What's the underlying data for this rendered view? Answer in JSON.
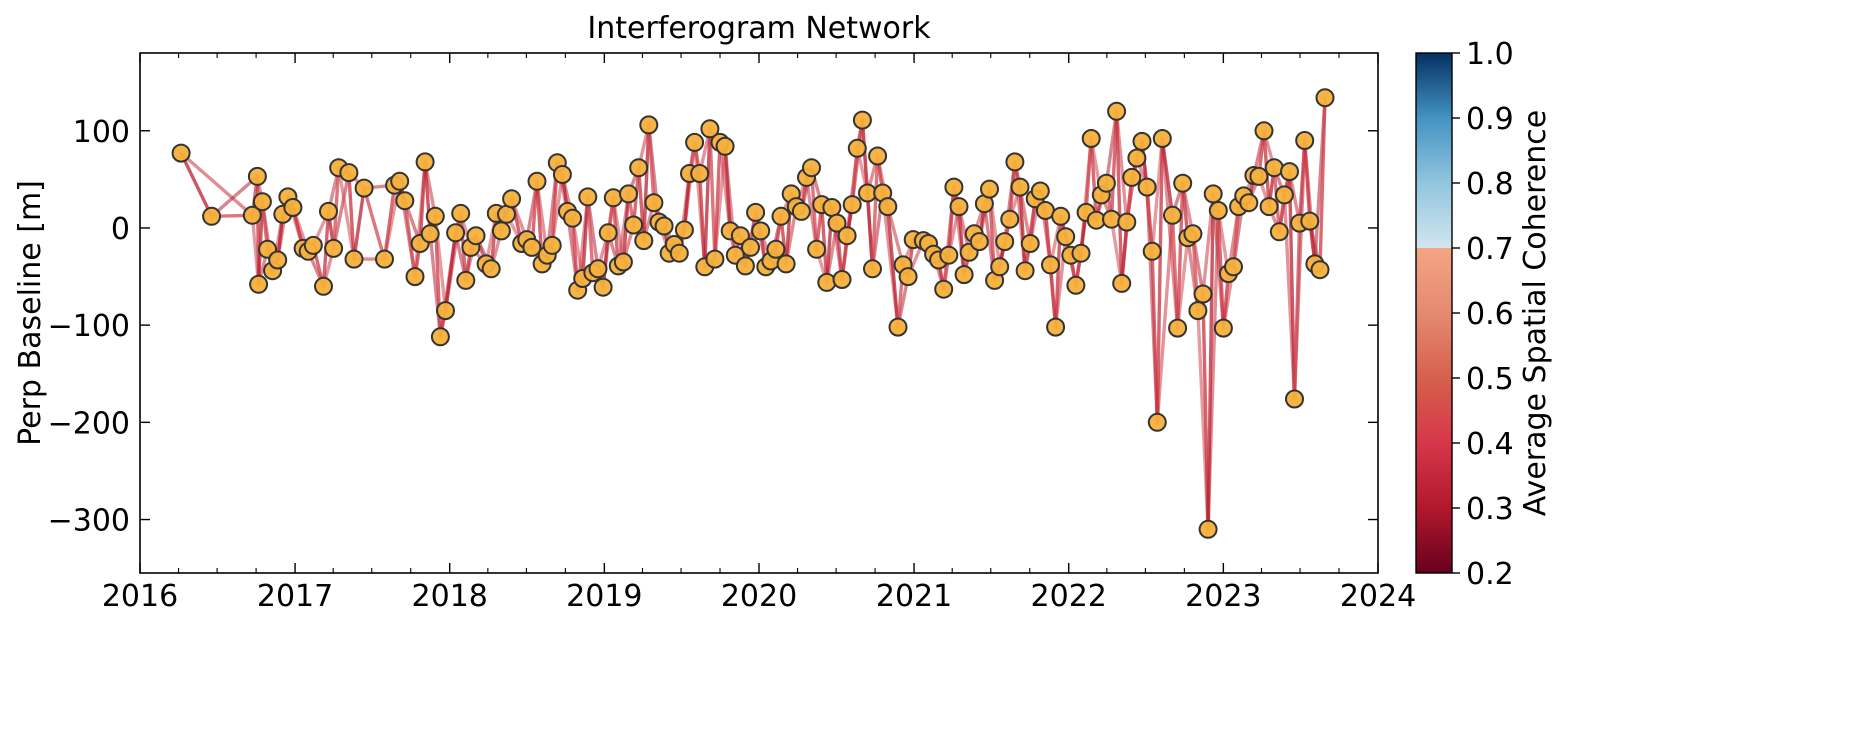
{
  "chart_data": {
    "type": "scatter",
    "title": "Interferogram Network",
    "xlabel": "",
    "ylabel": "Perp Baseline [m]",
    "x_ticks": [
      "2016",
      "2017",
      "2018",
      "2019",
      "2020",
      "2021",
      "2022",
      "2023",
      "2024"
    ],
    "y_ticks": [
      "100",
      "0",
      "−100",
      "−200",
      "−300"
    ],
    "xlim": [
      "2016-01-01",
      "2024-01-01"
    ],
    "ylim": [
      -355,
      180
    ],
    "grid": false,
    "colorbar": {
      "label": "Average Spatial Coherence",
      "range": [
        0.2,
        1.0
      ],
      "ticks": [
        "0.2",
        "0.3",
        "0.4",
        "0.5",
        "0.6",
        "0.7",
        "0.8",
        "0.9",
        "1.0"
      ],
      "colormap": "RdBu"
    },
    "marker_color": "#f6b03b",
    "marker_edge_color": "#333333",
    "edge_color": "#c6303c",
    "acquisitions": [
      [
        "2016-04-07",
        77
      ],
      [
        "2016-06-18",
        12
      ],
      [
        "2016-09-22",
        13
      ],
      [
        "2016-10-04",
        53
      ],
      [
        "2016-10-07",
        -58
      ],
      [
        "2016-10-16",
        27
      ],
      [
        "2016-10-28",
        -22
      ],
      [
        "2016-11-09",
        -44
      ],
      [
        "2016-11-21",
        -33
      ],
      [
        "2016-12-03",
        14
      ],
      [
        "2016-12-15",
        32
      ],
      [
        "2016-12-27",
        21
      ],
      [
        "2017-01-20",
        -21
      ],
      [
        "2017-02-01",
        -24
      ],
      [
        "2017-02-13",
        -18
      ],
      [
        "2017-03-09",
        -60
      ],
      [
        "2017-03-21",
        17
      ],
      [
        "2017-04-02",
        -21
      ],
      [
        "2017-04-14",
        62
      ],
      [
        "2017-05-08",
        57
      ],
      [
        "2017-05-20",
        -32
      ],
      [
        "2017-06-13",
        41
      ],
      [
        "2017-07-31",
        -32
      ],
      [
        "2017-08-24",
        44
      ],
      [
        "2017-09-05",
        48
      ],
      [
        "2017-09-17",
        28
      ],
      [
        "2017-10-11",
        -50
      ],
      [
        "2017-10-23",
        -16
      ],
      [
        "2017-11-04",
        68
      ],
      [
        "2017-11-16",
        -6
      ],
      [
        "2017-11-28",
        12
      ],
      [
        "2017-12-10",
        -112
      ],
      [
        "2017-12-22",
        -85
      ],
      [
        "2018-01-15",
        -5
      ],
      [
        "2018-01-27",
        15
      ],
      [
        "2018-02-08",
        -54
      ],
      [
        "2018-02-20",
        -20
      ],
      [
        "2018-03-04",
        -8
      ],
      [
        "2018-03-28",
        -37
      ],
      [
        "2018-04-09",
        -42
      ],
      [
        "2018-04-21",
        15
      ],
      [
        "2018-05-03",
        -3
      ],
      [
        "2018-05-15",
        14
      ],
      [
        "2018-05-27",
        30
      ],
      [
        "2018-06-20",
        -16
      ],
      [
        "2018-07-02",
        -12
      ],
      [
        "2018-07-14",
        -20
      ],
      [
        "2018-07-26",
        48
      ],
      [
        "2018-08-07",
        -37
      ],
      [
        "2018-08-19",
        -28
      ],
      [
        "2018-08-31",
        -18
      ],
      [
        "2018-09-12",
        67
      ],
      [
        "2018-09-24",
        55
      ],
      [
        "2018-10-06",
        17
      ],
      [
        "2018-10-18",
        10
      ],
      [
        "2018-10-30",
        -64
      ],
      [
        "2018-11-11",
        -52
      ],
      [
        "2018-11-23",
        32
      ],
      [
        "2018-12-05",
        -46
      ],
      [
        "2018-12-17",
        -42
      ],
      [
        "2018-12-29",
        -61
      ],
      [
        "2019-01-10",
        -5
      ],
      [
        "2019-01-22",
        31
      ],
      [
        "2019-02-03",
        -39
      ],
      [
        "2019-02-15",
        -35
      ],
      [
        "2019-02-27",
        35
      ],
      [
        "2019-03-11",
        3
      ],
      [
        "2019-03-23",
        62
      ],
      [
        "2019-04-04",
        -13
      ],
      [
        "2019-04-16",
        106
      ],
      [
        "2019-04-28",
        26
      ],
      [
        "2019-05-10",
        6
      ],
      [
        "2019-05-22",
        2
      ],
      [
        "2019-06-03",
        -26
      ],
      [
        "2019-06-15",
        -17
      ],
      [
        "2019-06-27",
        -26
      ],
      [
        "2019-07-09",
        -2
      ],
      [
        "2019-07-21",
        56
      ],
      [
        "2019-08-02",
        88
      ],
      [
        "2019-08-14",
        56
      ],
      [
        "2019-08-26",
        -40
      ],
      [
        "2019-09-07",
        102
      ],
      [
        "2019-09-19",
        -32
      ],
      [
        "2019-10-01",
        88
      ],
      [
        "2019-10-13",
        84
      ],
      [
        "2019-10-25",
        -3
      ],
      [
        "2019-11-06",
        -28
      ],
      [
        "2019-11-18",
        -8
      ],
      [
        "2019-11-30",
        -39
      ],
      [
        "2019-12-12",
        -20
      ],
      [
        "2019-12-24",
        16
      ],
      [
        "2020-01-05",
        -3
      ],
      [
        "2020-01-17",
        -40
      ],
      [
        "2020-01-29",
        -34
      ],
      [
        "2020-02-10",
        -22
      ],
      [
        "2020-02-22",
        12
      ],
      [
        "2020-03-05",
        -37
      ],
      [
        "2020-03-17",
        35
      ],
      [
        "2020-03-29",
        22
      ],
      [
        "2020-04-10",
        17
      ],
      [
        "2020-04-22",
        52
      ],
      [
        "2020-05-04",
        62
      ],
      [
        "2020-05-16",
        -22
      ],
      [
        "2020-05-28",
        24
      ],
      [
        "2020-06-09",
        -56
      ],
      [
        "2020-06-21",
        21
      ],
      [
        "2020-07-03",
        5
      ],
      [
        "2020-07-15",
        -53
      ],
      [
        "2020-07-27",
        -8
      ],
      [
        "2020-08-08",
        24
      ],
      [
        "2020-08-20",
        82
      ],
      [
        "2020-09-01",
        111
      ],
      [
        "2020-09-13",
        36
      ],
      [
        "2020-09-25",
        -42
      ],
      [
        "2020-10-07",
        74
      ],
      [
        "2020-10-19",
        36
      ],
      [
        "2020-10-31",
        22
      ],
      [
        "2020-11-24",
        -102
      ],
      [
        "2020-12-06",
        -38
      ],
      [
        "2020-12-18",
        -50
      ],
      [
        "2020-12-30",
        -12
      ],
      [
        "2021-01-23",
        -13
      ],
      [
        "2021-02-04",
        -16
      ],
      [
        "2021-02-16",
        -27
      ],
      [
        "2021-02-28",
        -33
      ],
      [
        "2021-03-12",
        -63
      ],
      [
        "2021-03-24",
        -28
      ],
      [
        "2021-04-05",
        42
      ],
      [
        "2021-04-17",
        22
      ],
      [
        "2021-04-29",
        -48
      ],
      [
        "2021-05-11",
        -25
      ],
      [
        "2021-05-23",
        -6
      ],
      [
        "2021-06-04",
        -14
      ],
      [
        "2021-06-16",
        25
      ],
      [
        "2021-06-28",
        40
      ],
      [
        "2021-07-10",
        -54
      ],
      [
        "2021-07-22",
        -40
      ],
      [
        "2021-08-03",
        -14
      ],
      [
        "2021-08-15",
        9
      ],
      [
        "2021-08-27",
        68
      ],
      [
        "2021-09-08",
        42
      ],
      [
        "2021-09-20",
        -44
      ],
      [
        "2021-10-02",
        -16
      ],
      [
        "2021-10-14",
        30
      ],
      [
        "2021-10-26",
        38
      ],
      [
        "2021-11-07",
        18
      ],
      [
        "2021-11-19",
        -38
      ],
      [
        "2021-12-01",
        -102
      ],
      [
        "2021-12-13",
        12
      ],
      [
        "2021-12-25",
        -9
      ],
      [
        "2022-01-06",
        -28
      ],
      [
        "2022-01-18",
        -59
      ],
      [
        "2022-01-30",
        -26
      ],
      [
        "2022-02-11",
        16
      ],
      [
        "2022-02-23",
        92
      ],
      [
        "2022-03-07",
        8
      ],
      [
        "2022-03-19",
        34
      ],
      [
        "2022-03-31",
        46
      ],
      [
        "2022-04-12",
        9
      ],
      [
        "2022-04-24",
        120
      ],
      [
        "2022-05-06",
        -57
      ],
      [
        "2022-05-18",
        6
      ],
      [
        "2022-05-30",
        52
      ],
      [
        "2022-06-11",
        72
      ],
      [
        "2022-06-23",
        89
      ],
      [
        "2022-07-05",
        42
      ],
      [
        "2022-07-17",
        -24
      ],
      [
        "2022-07-29",
        -200
      ],
      [
        "2022-08-10",
        92
      ],
      [
        "2022-09-03",
        13
      ],
      [
        "2022-09-15",
        -103
      ],
      [
        "2022-09-27",
        46
      ],
      [
        "2022-10-09",
        -10
      ],
      [
        "2022-10-21",
        -6
      ],
      [
        "2022-11-02",
        -85
      ],
      [
        "2022-11-14",
        -68
      ],
      [
        "2022-11-26",
        -310
      ],
      [
        "2022-12-08",
        35
      ],
      [
        "2022-12-20",
        18
      ],
      [
        "2023-01-01",
        -103
      ],
      [
        "2023-01-13",
        -47
      ],
      [
        "2023-01-25",
        -40
      ],
      [
        "2023-02-06",
        22
      ],
      [
        "2023-02-18",
        33
      ],
      [
        "2023-03-02",
        26
      ],
      [
        "2023-03-14",
        54
      ],
      [
        "2023-03-26",
        53
      ],
      [
        "2023-04-07",
        100
      ],
      [
        "2023-04-19",
        22
      ],
      [
        "2023-05-01",
        62
      ],
      [
        "2023-05-13",
        -4
      ],
      [
        "2023-05-25",
        34
      ],
      [
        "2023-06-06",
        58
      ],
      [
        "2023-06-18",
        -176
      ],
      [
        "2023-06-30",
        5
      ],
      [
        "2023-07-12",
        90
      ],
      [
        "2023-07-24",
        7
      ],
      [
        "2023-08-05",
        -37
      ],
      [
        "2023-08-17",
        -43
      ],
      [
        "2023-08-29",
        134
      ]
    ]
  }
}
